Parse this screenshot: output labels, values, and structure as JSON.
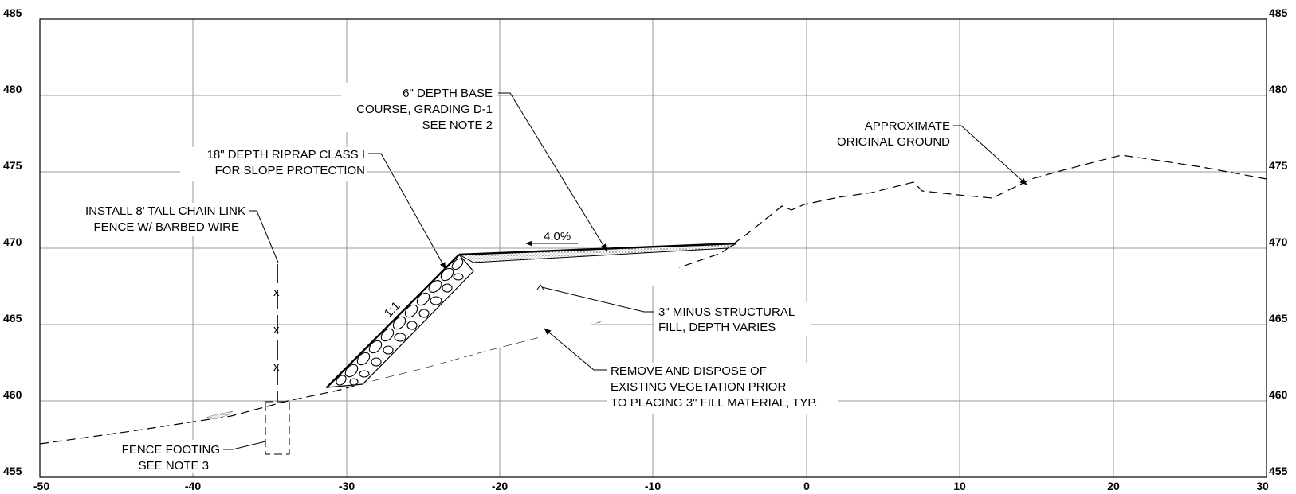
{
  "axes": {
    "x_ticks": [
      "-50",
      "-40",
      "-30",
      "-20",
      "-10",
      "0",
      "10",
      "20",
      "30"
    ],
    "y_ticks": [
      "485",
      "480",
      "475",
      "470",
      "465",
      "460",
      "455"
    ],
    "x_range": [
      -50,
      30
    ],
    "y_range": [
      455,
      485
    ]
  },
  "labels": {
    "base_course": [
      "6\" DEPTH BASE",
      "COURSE, GRADING D-1",
      "SEE NOTE 2"
    ],
    "riprap": [
      "18\" DEPTH RIPRAP CLASS I",
      "FOR SLOPE PROTECTION"
    ],
    "fence": [
      "INSTALL 8' TALL CHAIN LINK",
      "FENCE W/ BARBED WIRE"
    ],
    "original_ground": [
      "APPROXIMATE",
      "ORIGINAL GROUND"
    ],
    "structural_fill": [
      "3\" MINUS STRUCTURAL",
      "FILL, DEPTH VARIES"
    ],
    "vegetation": [
      "REMOVE AND DISPOSE OF",
      "EXISTING VEGETATION PRIOR",
      "TO PLACING 3\" FILL MATERIAL, TYP."
    ],
    "fence_footing": [
      "FENCE FOOTING",
      "SEE NOTE 3"
    ],
    "slope_grade": "4.0%",
    "slope_ratio": "1:1",
    "fence_mark": "x"
  }
}
